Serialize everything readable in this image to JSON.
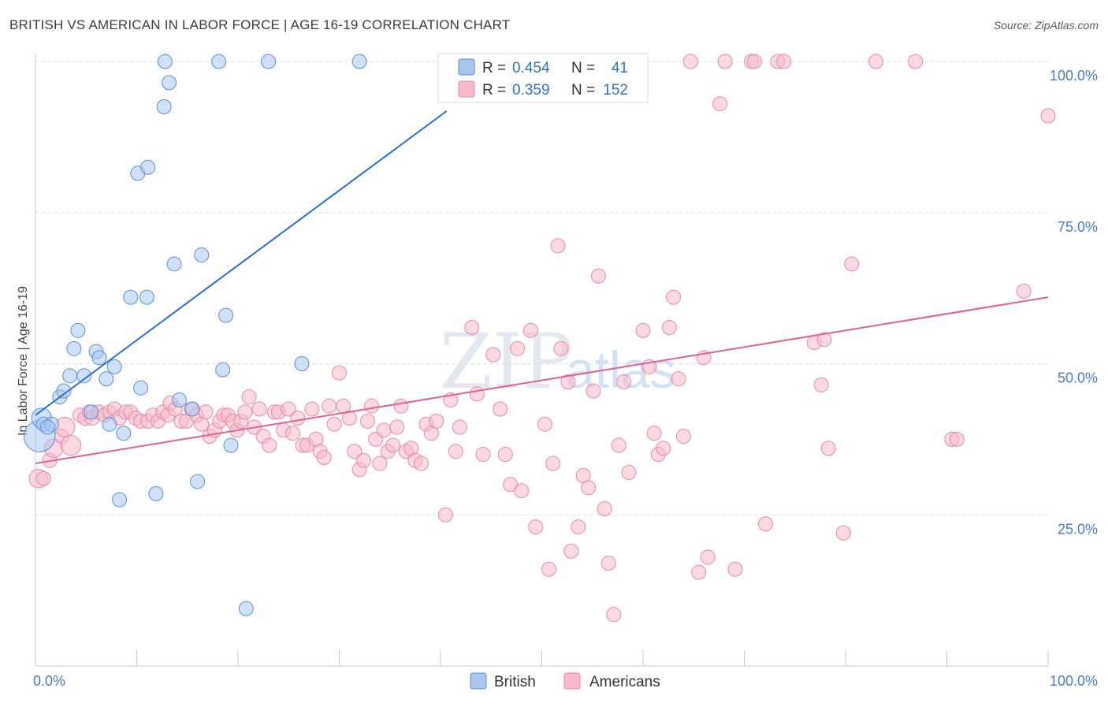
{
  "header": {
    "title": "BRITISH VS AMERICAN IN LABOR FORCE | AGE 16-19 CORRELATION CHART",
    "source": "Source: ZipAtlas.com"
  },
  "watermark": {
    "part1": "ZIP",
    "part2": "atlas"
  },
  "colors": {
    "british_fill": "#a9c6ee",
    "british_stroke": "#5b8fd6",
    "british_line": "#2a6fcf",
    "americans_fill": "#f6bacb",
    "americans_stroke": "#e68aa7",
    "americans_line": "#e0628f",
    "grid": "#dcdcdc",
    "tick_text": "#4a7cc8"
  },
  "legend": {
    "rows": [
      {
        "r_label": "R =",
        "r_value": "0.454",
        "n_label": "N =",
        "n_value": "41"
      },
      {
        "r_label": "R =",
        "r_value": "0.359",
        "n_label": "N =",
        "n_value": "152"
      }
    ]
  },
  "bottom_legend": {
    "british": "British",
    "americans": "Americans"
  },
  "chart_data": {
    "type": "scatter",
    "title": "BRITISH VS AMERICAN IN LABOR FORCE | AGE 16-19 CORRELATION CHART",
    "xlabel": "",
    "ylabel": "In Labor Force | Age 16-19",
    "xlim": [
      0,
      100
    ],
    "ylim": [
      0,
      100
    ],
    "x_tick_labels": [
      "0.0%",
      "100.0%"
    ],
    "y_ticks": [
      25,
      50,
      75,
      100
    ],
    "y_tick_labels": [
      "25.0%",
      "50.0%",
      "75.0%",
      "100.0%"
    ],
    "grid": true,
    "legend_position": "top-center",
    "series": [
      {
        "name": "British",
        "R": 0.454,
        "N": 41,
        "trend": {
          "x": [
            0,
            40.6
          ],
          "y": [
            41.5,
            91.8
          ]
        },
        "points": [
          [
            0.4,
            38,
            2.2
          ],
          [
            0.6,
            41,
            1.4
          ],
          [
            0.8,
            40,
            1
          ],
          [
            1.6,
            40,
            1
          ],
          [
            1.2,
            39.5,
            1
          ],
          [
            2.4,
            44.5,
            1
          ],
          [
            2.8,
            45.5,
            1
          ],
          [
            3.4,
            48,
            1
          ],
          [
            3.8,
            52.5,
            1
          ],
          [
            4.2,
            55.5,
            1
          ],
          [
            4.8,
            48,
            1
          ],
          [
            5.5,
            42,
            1
          ],
          [
            6,
            52,
            1
          ],
          [
            6.3,
            51,
            1
          ],
          [
            7,
            47.5,
            1
          ],
          [
            7.3,
            40,
            1
          ],
          [
            7.8,
            49.5,
            1
          ],
          [
            8.3,
            27.5,
            1
          ],
          [
            8.7,
            38.5,
            1
          ],
          [
            9.4,
            61,
            1
          ],
          [
            10.1,
            81.5,
            1
          ],
          [
            10.4,
            46,
            1
          ],
          [
            11,
            61,
            1
          ],
          [
            11.1,
            82.5,
            1
          ],
          [
            11.9,
            28.5,
            1
          ],
          [
            12.7,
            92.5,
            1
          ],
          [
            12.8,
            100,
            1
          ],
          [
            13.2,
            96.5,
            1
          ],
          [
            13.7,
            66.5,
            1
          ],
          [
            14.2,
            44,
            1
          ],
          [
            15.5,
            42.5,
            1
          ],
          [
            16,
            30.5,
            1
          ],
          [
            16.4,
            68,
            1
          ],
          [
            18.1,
            100,
            1
          ],
          [
            18.5,
            49,
            1
          ],
          [
            18.8,
            58,
            1
          ],
          [
            19.3,
            36.5,
            1
          ],
          [
            20.8,
            9.5,
            1
          ],
          [
            23,
            100,
            1
          ],
          [
            26.3,
            50,
            1
          ],
          [
            32,
            100,
            1
          ]
        ]
      },
      {
        "name": "Americans",
        "R": 0.359,
        "N": 152,
        "trend": {
          "x": [
            0,
            100
          ],
          "y": [
            33.5,
            61
          ]
        },
        "points": [
          [
            0.3,
            31,
            1.3
          ],
          [
            0.8,
            31,
            1
          ],
          [
            1.4,
            34,
            1
          ],
          [
            1.8,
            36,
            1.3
          ],
          [
            2.6,
            38,
            1
          ],
          [
            2.9,
            39.5,
            1.4
          ],
          [
            3.5,
            36.5,
            1.4
          ],
          [
            4.4,
            41.5,
            1
          ],
          [
            4.9,
            41,
            1
          ],
          [
            5.3,
            42,
            1
          ],
          [
            5.6,
            41,
            1
          ],
          [
            6.2,
            42,
            1
          ],
          [
            6.8,
            41.5,
            1
          ],
          [
            7.3,
            42,
            1
          ],
          [
            7.8,
            42.5,
            1
          ],
          [
            8.3,
            41,
            1
          ],
          [
            8.9,
            42,
            1
          ],
          [
            9.4,
            42,
            1
          ],
          [
            9.9,
            41,
            1
          ],
          [
            10.4,
            40.5,
            1
          ],
          [
            11.1,
            40.5,
            1
          ],
          [
            11.6,
            41.5,
            1
          ],
          [
            12.1,
            40.5,
            1
          ],
          [
            12.6,
            42,
            1
          ],
          [
            13.1,
            41.5,
            1
          ],
          [
            13.3,
            43.5,
            1
          ],
          [
            13.8,
            42.5,
            1
          ],
          [
            14.4,
            40.5,
            1
          ],
          [
            14.9,
            40.5,
            1
          ],
          [
            15.4,
            42.5,
            1
          ],
          [
            15.9,
            41.5,
            1
          ],
          [
            16.4,
            40,
            1
          ],
          [
            16.8,
            42,
            1
          ],
          [
            17.2,
            38,
            1
          ],
          [
            17.7,
            39,
            1
          ],
          [
            18.2,
            40.5,
            1
          ],
          [
            18.6,
            41.5,
            1
          ],
          [
            19,
            41.5,
            1
          ],
          [
            19.5,
            40.5,
            1
          ],
          [
            19.9,
            39,
            1
          ],
          [
            20.3,
            40.5,
            1
          ],
          [
            20.7,
            42,
            1
          ],
          [
            21.1,
            44.5,
            1
          ],
          [
            21.6,
            39.5,
            1
          ],
          [
            22.1,
            42.5,
            1
          ],
          [
            22.5,
            38,
            1
          ],
          [
            23.1,
            36.5,
            1
          ],
          [
            23.6,
            42,
            1
          ],
          [
            24,
            42,
            1
          ],
          [
            24.5,
            39,
            1
          ],
          [
            25,
            42.5,
            1
          ],
          [
            25.4,
            38.5,
            1
          ],
          [
            25.9,
            41,
            1
          ],
          [
            26.4,
            36.5,
            1
          ],
          [
            26.8,
            36.5,
            1
          ],
          [
            27.3,
            42.5,
            1
          ],
          [
            27.7,
            37.5,
            1
          ],
          [
            28.1,
            35.5,
            1
          ],
          [
            28.5,
            34.5,
            1
          ],
          [
            29,
            43,
            1
          ],
          [
            29.5,
            40,
            1
          ],
          [
            30,
            48.5,
            1
          ],
          [
            30.4,
            43,
            1
          ],
          [
            31,
            41,
            1
          ],
          [
            31.5,
            35.5,
            1
          ],
          [
            32,
            32.5,
            1
          ],
          [
            32.4,
            34,
            1
          ],
          [
            32.8,
            40.5,
            1
          ],
          [
            33.2,
            43,
            1
          ],
          [
            33.6,
            37.5,
            1
          ],
          [
            34,
            33.5,
            1
          ],
          [
            34.4,
            39,
            1
          ],
          [
            34.8,
            35.5,
            1
          ],
          [
            35.3,
            36.5,
            1
          ],
          [
            35.7,
            39.5,
            1
          ],
          [
            36.1,
            43,
            1
          ],
          [
            36.6,
            35.5,
            1
          ],
          [
            37.1,
            36,
            1
          ],
          [
            37.5,
            34,
            1
          ],
          [
            38.1,
            33.5,
            1
          ],
          [
            38.6,
            40,
            1
          ],
          [
            39.1,
            38.5,
            1
          ],
          [
            39.6,
            40.5,
            1
          ],
          [
            40.5,
            25,
            1
          ],
          [
            41,
            44,
            1
          ],
          [
            41.5,
            35.5,
            1
          ],
          [
            41.9,
            39.5,
            1
          ],
          [
            43.1,
            56,
            1
          ],
          [
            43.6,
            45,
            1
          ],
          [
            44.2,
            35,
            1
          ],
          [
            45.2,
            51.5,
            1
          ],
          [
            45.9,
            42.5,
            1
          ],
          [
            46.4,
            35,
            1
          ],
          [
            46.9,
            30,
            1
          ],
          [
            47.6,
            52.5,
            1
          ],
          [
            48,
            29,
            1
          ],
          [
            48.9,
            55.5,
            1
          ],
          [
            49.4,
            23,
            1
          ],
          [
            50.3,
            40,
            1
          ],
          [
            50.7,
            16,
            1
          ],
          [
            51.1,
            33.5,
            1
          ],
          [
            51.6,
            69.5,
            1
          ],
          [
            51.9,
            52.5,
            1
          ],
          [
            52.6,
            47,
            1
          ],
          [
            52.9,
            19,
            1
          ],
          [
            53.6,
            23,
            1
          ],
          [
            54.1,
            31.5,
            1
          ],
          [
            54.6,
            29.5,
            1
          ],
          [
            55.1,
            45.5,
            1
          ],
          [
            55.6,
            64.5,
            1
          ],
          [
            56.2,
            26,
            1
          ],
          [
            56.6,
            17,
            1
          ],
          [
            57.1,
            8.5,
            1
          ],
          [
            57.6,
            36.5,
            1
          ],
          [
            58.1,
            47,
            1
          ],
          [
            58.6,
            32,
            1
          ],
          [
            59.1,
            100,
            1
          ],
          [
            60,
            55.5,
            1
          ],
          [
            60.6,
            49.5,
            1
          ],
          [
            61.1,
            38.5,
            1
          ],
          [
            61.5,
            35,
            1
          ],
          [
            62,
            36,
            1
          ],
          [
            62.6,
            56,
            1
          ],
          [
            63,
            61,
            1
          ],
          [
            63.5,
            47.5,
            1
          ],
          [
            64,
            38,
            1
          ],
          [
            64.7,
            100,
            1
          ],
          [
            65.5,
            15.5,
            1
          ],
          [
            66,
            51,
            1
          ],
          [
            66.4,
            18,
            1
          ],
          [
            67.6,
            93,
            1
          ],
          [
            68.1,
            100,
            1
          ],
          [
            69.1,
            16,
            1
          ],
          [
            70.7,
            100,
            1
          ],
          [
            71,
            100,
            1
          ],
          [
            72.1,
            23.5,
            1
          ],
          [
            73.3,
            100,
            1
          ],
          [
            73.9,
            100,
            1
          ],
          [
            76.9,
            53.5,
            1
          ],
          [
            77.6,
            46.5,
            1
          ],
          [
            77.9,
            54,
            1
          ],
          [
            78.3,
            36,
            1
          ],
          [
            79.8,
            22,
            1
          ],
          [
            80.6,
            66.5,
            1
          ],
          [
            83,
            100,
            1
          ],
          [
            86.9,
            100,
            1
          ],
          [
            90.5,
            37.5,
            1
          ],
          [
            91,
            37.5,
            1
          ],
          [
            97.6,
            62,
            1
          ],
          [
            100,
            91,
            1
          ]
        ]
      }
    ]
  }
}
